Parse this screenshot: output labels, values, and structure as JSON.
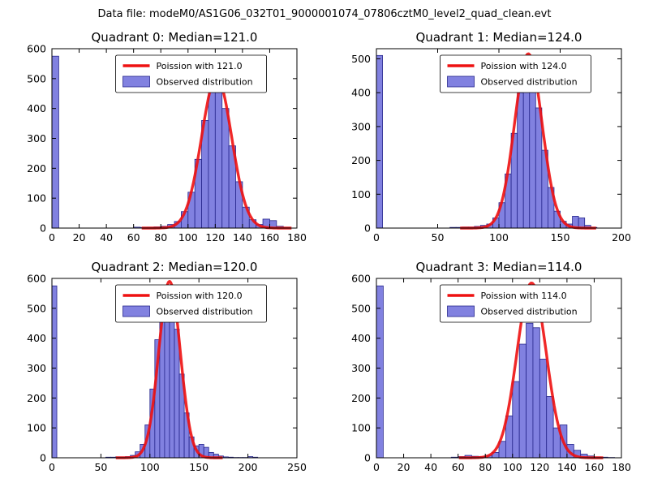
{
  "figure_title": "Data file: modeM0/AS1G06_032T01_9000001074_07806cztM0_level2_quad_clean.evt",
  "colors": {
    "background": "#ffffff",
    "bar_fill": "#8181e0",
    "bar_edge": "#26268c",
    "curve": "#ee1111",
    "axis": "#000000"
  },
  "legend_labels": {
    "curve_prefix": "Poission with",
    "observed": "Observed distribution"
  },
  "chart_data": [
    {
      "type": "bar",
      "subtype": "histogram-with-fit",
      "title": "Quadrant 0: Median=121.0",
      "legend": [
        "Poission with 121.0",
        "Observed distribution"
      ],
      "legend_position": "upper center",
      "grid": false,
      "xlim": [
        0,
        180
      ],
      "xticks": [
        0,
        20,
        40,
        60,
        80,
        100,
        120,
        140,
        160,
        180
      ],
      "ylim": [
        0,
        600
      ],
      "yticks": [
        0,
        100,
        200,
        300,
        400,
        500,
        600
      ],
      "bin_start": 0,
      "bin_width": 5,
      "counts": [
        575,
        0,
        0,
        0,
        0,
        0,
        0,
        0,
        0,
        0,
        0,
        0,
        3,
        2,
        3,
        4,
        6,
        12,
        22,
        55,
        120,
        230,
        360,
        455,
        470,
        400,
        275,
        155,
        70,
        28,
        12,
        30,
        25,
        6,
        2,
        0
      ],
      "poisson_mean": 121.0,
      "curve_peak": 505
    },
    {
      "type": "bar",
      "subtype": "histogram-with-fit",
      "title": "Quadrant 1: Median=124.0",
      "legend": [
        "Poission with 124.0",
        "Observed distribution"
      ],
      "legend_position": "upper center",
      "grid": false,
      "xlim": [
        0,
        200
      ],
      "xticks": [
        0,
        50,
        100,
        150,
        200
      ],
      "ylim": [
        0,
        530
      ],
      "yticks": [
        0,
        100,
        200,
        300,
        400,
        500
      ],
      "bin_start": 0,
      "bin_width": 5,
      "counts": [
        510,
        0,
        0,
        0,
        0,
        0,
        0,
        0,
        0,
        0,
        0,
        0,
        2,
        2,
        3,
        3,
        5,
        8,
        12,
        30,
        75,
        160,
        280,
        400,
        430,
        425,
        355,
        230,
        120,
        50,
        20,
        12,
        35,
        30,
        8,
        2,
        0,
        0,
        0,
        0
      ],
      "poisson_mean": 124.0,
      "curve_peak": 515
    },
    {
      "type": "bar",
      "subtype": "histogram-with-fit",
      "title": "Quadrant 2: Median=120.0",
      "legend": [
        "Poission with 120.0",
        "Observed distribution"
      ],
      "legend_position": "upper center",
      "grid": false,
      "xlim": [
        0,
        250
      ],
      "xticks": [
        0,
        50,
        100,
        150,
        200,
        250
      ],
      "ylim": [
        0,
        600
      ],
      "yticks": [
        0,
        100,
        200,
        300,
        400,
        500,
        600
      ],
      "bin_start": 0,
      "bin_width": 5,
      "counts": [
        575,
        0,
        0,
        0,
        0,
        0,
        0,
        0,
        0,
        0,
        0,
        2,
        2,
        3,
        3,
        4,
        8,
        20,
        45,
        110,
        230,
        395,
        500,
        560,
        545,
        430,
        280,
        150,
        70,
        40,
        45,
        35,
        18,
        12,
        6,
        3,
        2,
        1,
        1,
        1,
        4,
        2,
        0,
        0,
        0,
        0,
        0,
        0,
        0,
        0
      ],
      "poisson_mean": 120.0,
      "curve_peak": 590
    },
    {
      "type": "bar",
      "subtype": "histogram-with-fit",
      "title": "Quadrant 3: Median=114.0",
      "legend": [
        "Poission with 114.0",
        "Observed distribution"
      ],
      "legend_position": "upper center",
      "grid": false,
      "xlim": [
        0,
        180
      ],
      "xticks": [
        0,
        20,
        40,
        60,
        80,
        100,
        120,
        140,
        160,
        180
      ],
      "ylim": [
        0,
        600
      ],
      "yticks": [
        0,
        100,
        200,
        300,
        400,
        500,
        600
      ],
      "bin_start": 0,
      "bin_width": 5,
      "counts": [
        575,
        0,
        0,
        0,
        0,
        0,
        0,
        0,
        0,
        0,
        0,
        2,
        4,
        8,
        5,
        4,
        8,
        18,
        55,
        140,
        255,
        380,
        450,
        435,
        330,
        205,
        100,
        110,
        45,
        25,
        12,
        6,
        3,
        2,
        1,
        0
      ],
      "poisson_mean": 114.0,
      "curve_peak": 585
    }
  ]
}
